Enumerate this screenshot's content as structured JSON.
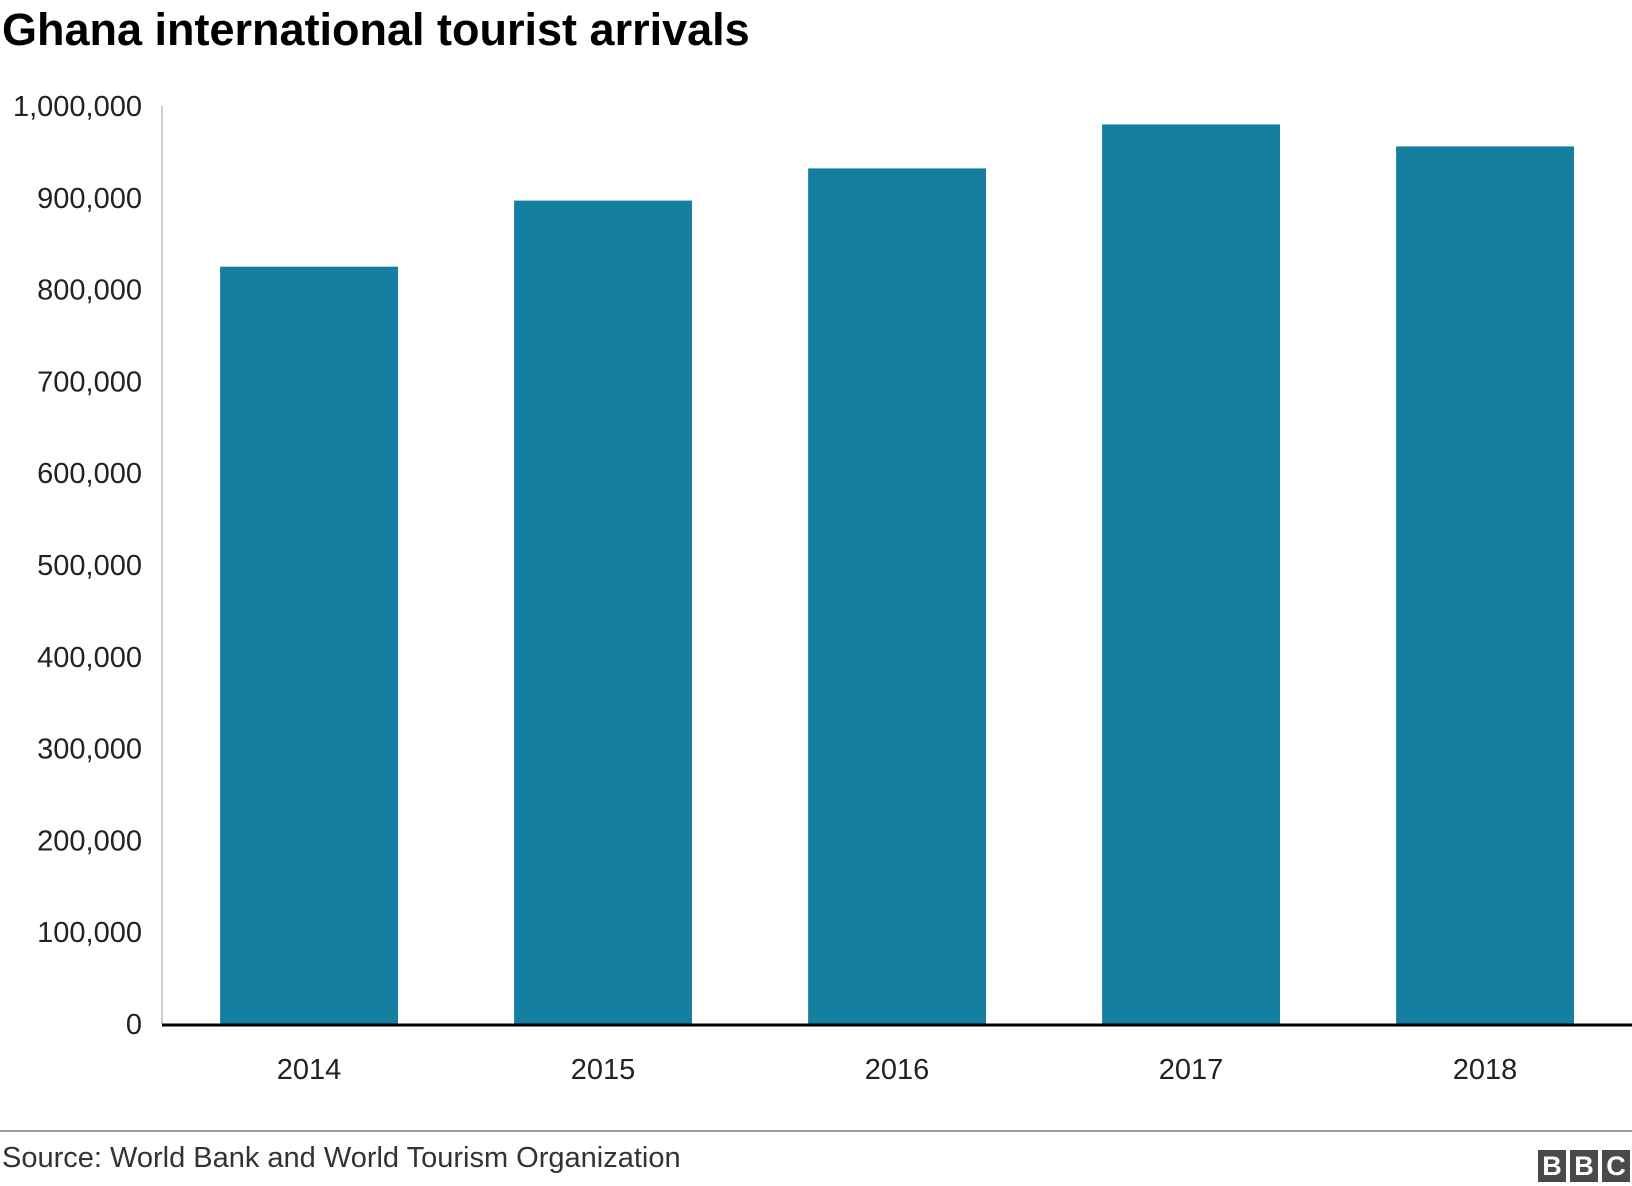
{
  "chart_data": {
    "type": "bar",
    "title": "Ghana international tourist arrivals",
    "categories": [
      "2014",
      "2015",
      "2016",
      "2017",
      "2018"
    ],
    "values": [
      825000,
      897000,
      932000,
      980000,
      956000
    ],
    "ylim": [
      0,
      1000000
    ],
    "yticks": [
      "0",
      "100,000",
      "200,000",
      "300,000",
      "400,000",
      "500,000",
      "600,000",
      "700,000",
      "800,000",
      "900,000",
      "1,000,000"
    ],
    "ytick_values": [
      0,
      100000,
      200000,
      300000,
      400000,
      500000,
      600000,
      700000,
      800000,
      900000,
      1000000
    ],
    "xlabel": "",
    "ylabel": "",
    "grid": false,
    "colors": {
      "bar": "#157fa1",
      "axis": "#000000",
      "tick_text": "#222222"
    }
  },
  "footer": {
    "source": "Source: World Bank and World Tourism Organization",
    "logo": [
      "B",
      "B",
      "C"
    ]
  }
}
